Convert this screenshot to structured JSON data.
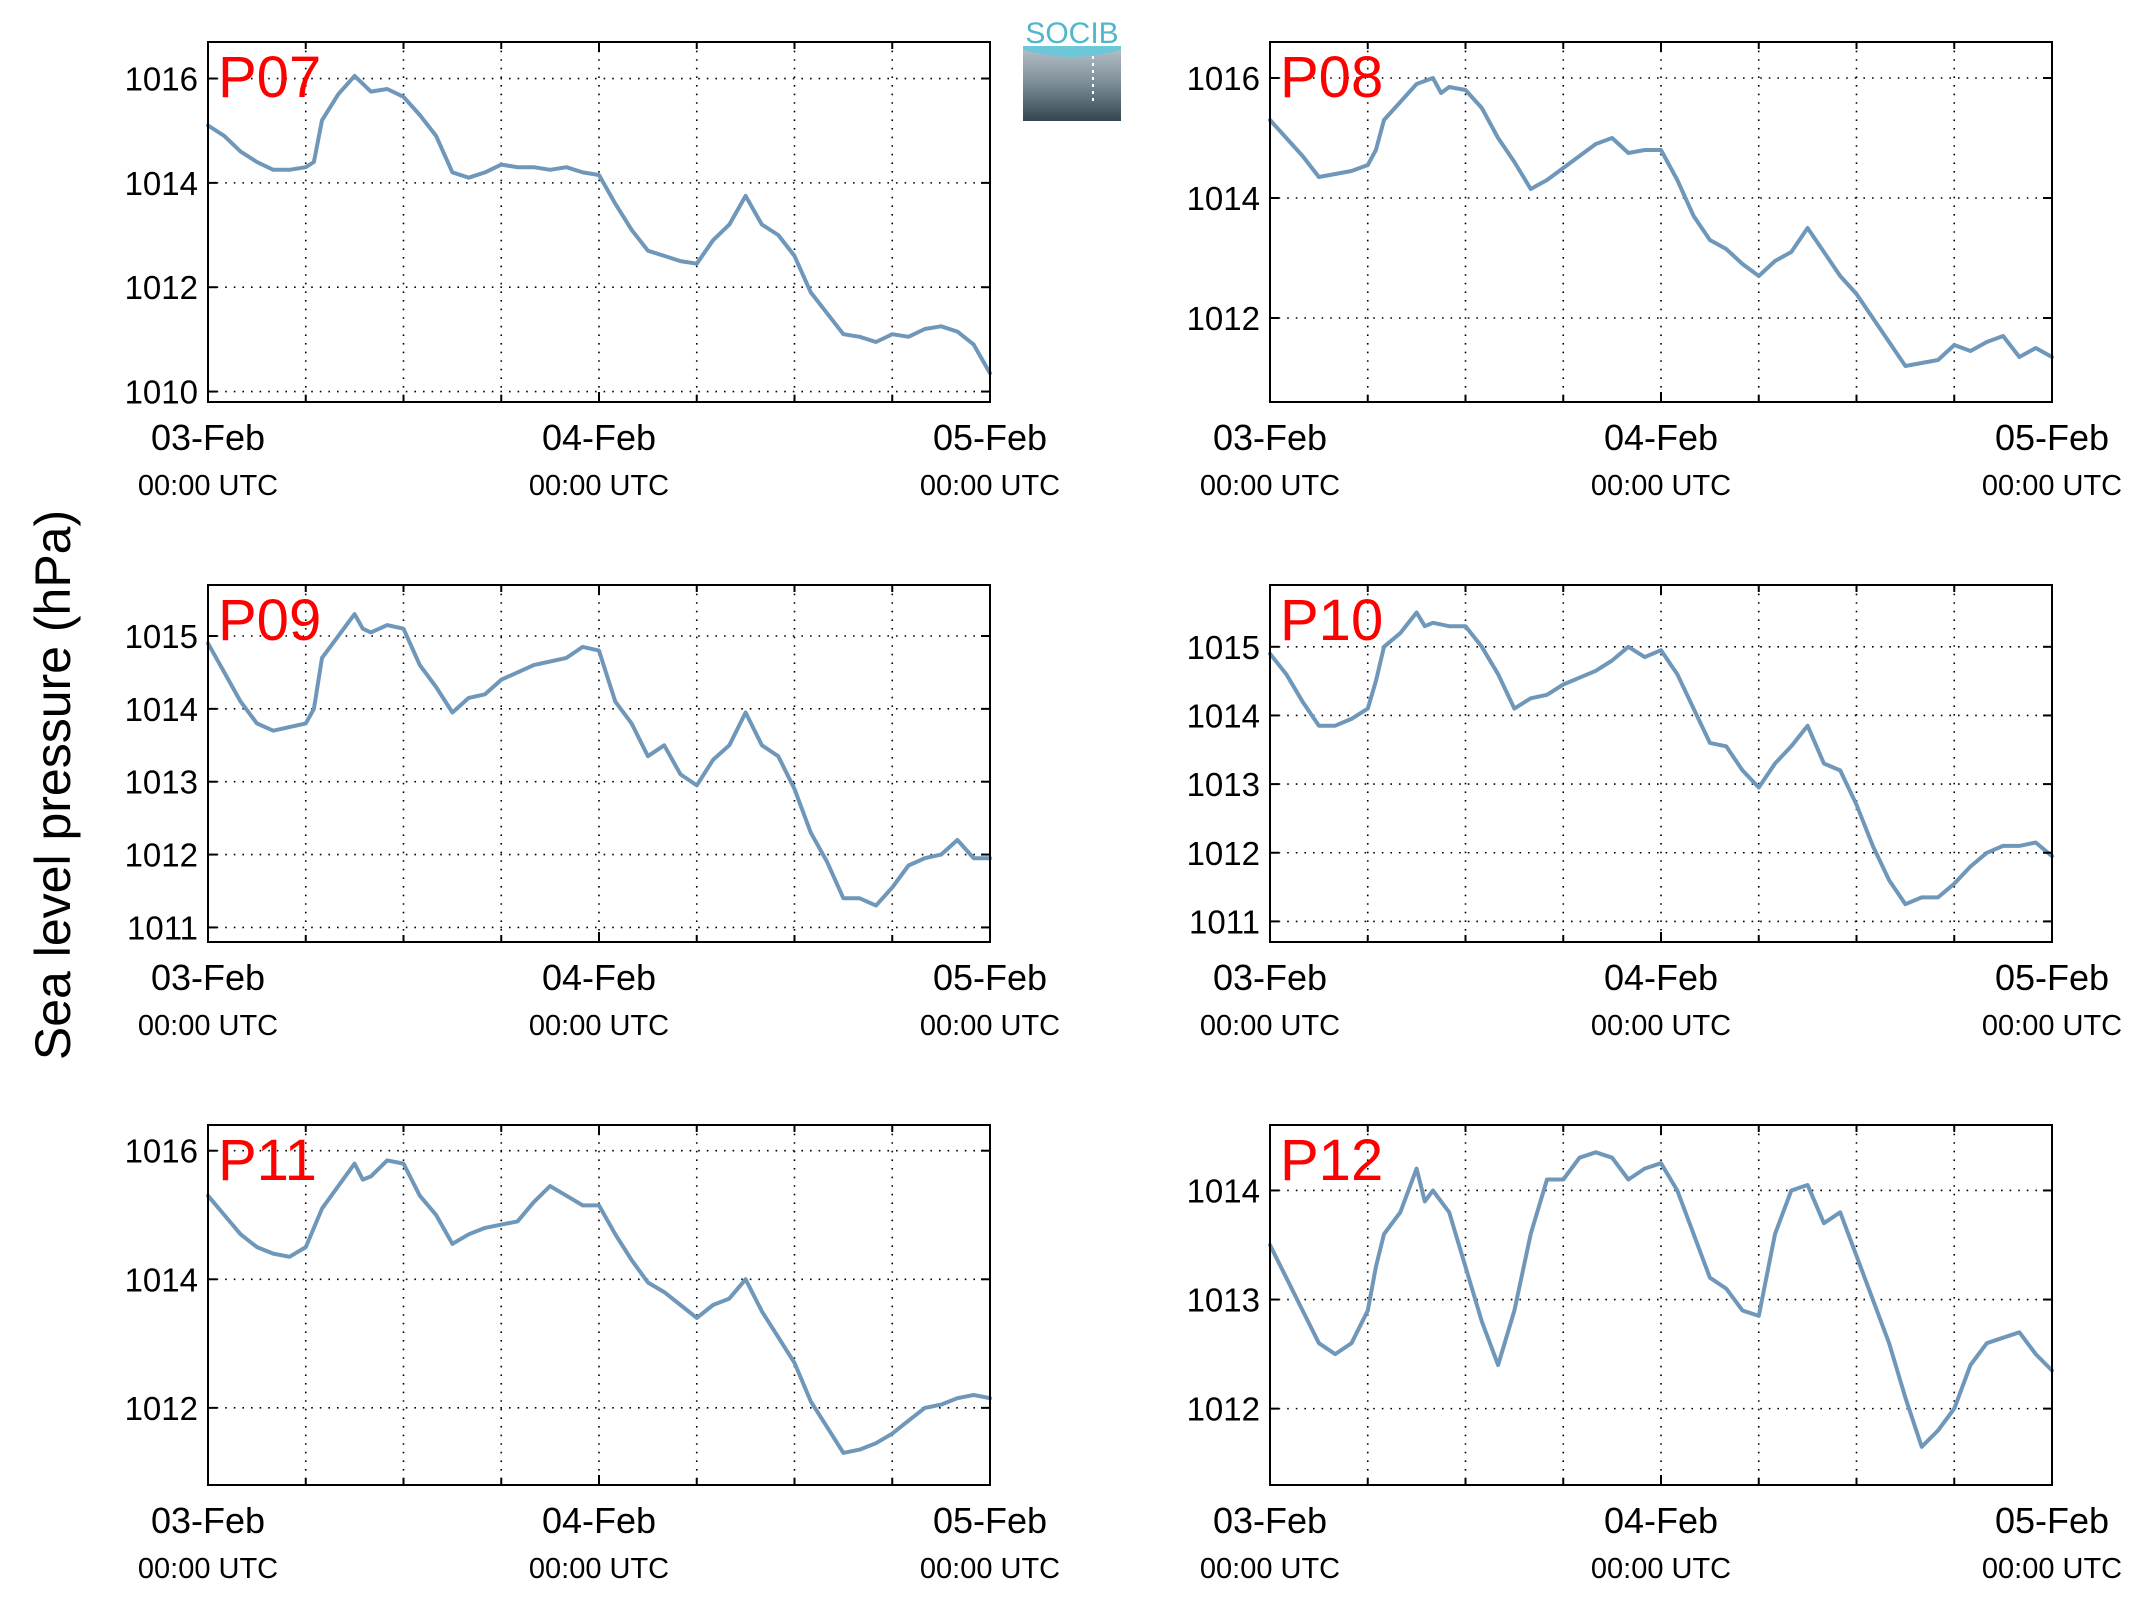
{
  "figure": {
    "ylabel": "Sea level pressure (hPa)",
    "logo_text": "SOCIB",
    "line_color": "#6f97b9",
    "label_color": "#ff0000"
  },
  "chart_data": [
    {
      "type": "line",
      "title": "P07",
      "xlim": [
        0,
        48
      ],
      "ylim": [
        1009.8,
        1016.7
      ],
      "xticks": [
        0,
        24,
        48
      ],
      "xtick_labels": [
        [
          "03-Feb",
          "00:00 UTC"
        ],
        [
          "04-Feb",
          "00:00 UTC"
        ],
        [
          "05-Feb",
          "00:00 UTC"
        ]
      ],
      "yticks": [
        1010,
        1012,
        1014,
        1016
      ],
      "grid": true,
      "series": [
        {
          "x": [
            0,
            1,
            2,
            3,
            4,
            5,
            6,
            6.5,
            7,
            8,
            9,
            10,
            11,
            12,
            13,
            14,
            15,
            16,
            17,
            18,
            19,
            20,
            21,
            22,
            23,
            24,
            25,
            26,
            27,
            28,
            29,
            30,
            31,
            32,
            33,
            34,
            35,
            36,
            37,
            38,
            39,
            40,
            41,
            42,
            43,
            44,
            45,
            46,
            47,
            48
          ],
          "values": [
            1015.1,
            1014.9,
            1014.6,
            1014.4,
            1014.25,
            1014.25,
            1014.3,
            1014.4,
            1015.2,
            1015.7,
            1016.05,
            1015.75,
            1015.8,
            1015.65,
            1015.3,
            1014.9,
            1014.2,
            1014.1,
            1014.2,
            1014.35,
            1014.3,
            1014.3,
            1014.25,
            1014.3,
            1014.2,
            1014.15,
            1013.6,
            1013.1,
            1012.7,
            1012.6,
            1012.5,
            1012.45,
            1012.9,
            1013.2,
            1013.75,
            1013.2,
            1013.0,
            1012.6,
            1011.9,
            1011.5,
            1011.1,
            1011.05,
            1010.95,
            1011.1,
            1011.05,
            1011.2,
            1011.25,
            1011.15,
            1010.9,
            1010.35
          ]
        }
      ]
    },
    {
      "type": "line",
      "title": "P08",
      "xlim": [
        0,
        48
      ],
      "ylim": [
        1010.6,
        1016.6
      ],
      "xticks": [
        0,
        24,
        48
      ],
      "xtick_labels": [
        [
          "03-Feb",
          "00:00 UTC"
        ],
        [
          "04-Feb",
          "00:00 UTC"
        ],
        [
          "05-Feb",
          "00:00 UTC"
        ]
      ],
      "yticks": [
        1012,
        1014,
        1016
      ],
      "grid": true,
      "series": [
        {
          "x": [
            0,
            1,
            2,
            3,
            4,
            5,
            6,
            6.5,
            7,
            8,
            9,
            10,
            10.5,
            11,
            12,
            13,
            14,
            15,
            16,
            17,
            18,
            19,
            20,
            21,
            22,
            23,
            24,
            25,
            26,
            27,
            28,
            29,
            30,
            31,
            32,
            33,
            34,
            35,
            36,
            37,
            38,
            39,
            40,
            41,
            42,
            43,
            44,
            45,
            46,
            47,
            48
          ],
          "values": [
            1015.3,
            1015.0,
            1014.7,
            1014.35,
            1014.4,
            1014.45,
            1014.55,
            1014.8,
            1015.3,
            1015.6,
            1015.9,
            1016.0,
            1015.75,
            1015.85,
            1015.8,
            1015.5,
            1015.0,
            1014.6,
            1014.15,
            1014.3,
            1014.5,
            1014.7,
            1014.9,
            1015.0,
            1014.75,
            1014.8,
            1014.8,
            1014.3,
            1013.7,
            1013.3,
            1013.15,
            1012.9,
            1012.7,
            1012.95,
            1013.1,
            1013.5,
            1013.1,
            1012.7,
            1012.4,
            1012.0,
            1011.6,
            1011.2,
            1011.25,
            1011.3,
            1011.55,
            1011.45,
            1011.6,
            1011.7,
            1011.35,
            1011.5,
            1011.35
          ]
        }
      ]
    },
    {
      "type": "line",
      "title": "P09",
      "xlim": [
        0,
        48
      ],
      "ylim": [
        1010.8,
        1015.7
      ],
      "xticks": [
        0,
        24,
        48
      ],
      "xtick_labels": [
        [
          "03-Feb",
          "00:00 UTC"
        ],
        [
          "04-Feb",
          "00:00 UTC"
        ],
        [
          "05-Feb",
          "00:00 UTC"
        ]
      ],
      "yticks": [
        1011,
        1012,
        1013,
        1014,
        1015
      ],
      "grid": true,
      "series": [
        {
          "x": [
            0,
            1,
            2,
            3,
            4,
            5,
            6,
            6.5,
            7,
            8,
            9,
            9.5,
            10,
            11,
            12,
            13,
            14,
            15,
            16,
            17,
            18,
            19,
            20,
            21,
            22,
            23,
            24,
            25,
            26,
            27,
            28,
            29,
            30,
            31,
            32,
            33,
            34,
            35,
            36,
            37,
            38,
            39,
            40,
            41,
            42,
            43,
            44,
            45,
            46,
            47,
            48
          ],
          "values": [
            1014.9,
            1014.5,
            1014.1,
            1013.8,
            1013.7,
            1013.75,
            1013.8,
            1014.0,
            1014.7,
            1015.0,
            1015.3,
            1015.1,
            1015.05,
            1015.15,
            1015.1,
            1014.6,
            1014.3,
            1013.95,
            1014.15,
            1014.2,
            1014.4,
            1014.5,
            1014.6,
            1014.65,
            1014.7,
            1014.85,
            1014.8,
            1014.1,
            1013.8,
            1013.35,
            1013.5,
            1013.1,
            1012.95,
            1013.3,
            1013.5,
            1013.95,
            1013.5,
            1013.35,
            1012.9,
            1012.3,
            1011.9,
            1011.4,
            1011.4,
            1011.3,
            1011.55,
            1011.85,
            1011.95,
            1012.0,
            1012.2,
            1011.95,
            1011.95
          ]
        }
      ]
    },
    {
      "type": "line",
      "title": "P10",
      "xlim": [
        0,
        48
      ],
      "ylim": [
        1010.7,
        1015.9
      ],
      "xticks": [
        0,
        24,
        48
      ],
      "xtick_labels": [
        [
          "03-Feb",
          "00:00 UTC"
        ],
        [
          "04-Feb",
          "00:00 UTC"
        ],
        [
          "05-Feb",
          "00:00 UTC"
        ]
      ],
      "yticks": [
        1011,
        1012,
        1013,
        1014,
        1015
      ],
      "grid": true,
      "series": [
        {
          "x": [
            0,
            1,
            2,
            3,
            4,
            5,
            6,
            6.5,
            7,
            8,
            9,
            9.5,
            10,
            11,
            12,
            13,
            14,
            15,
            16,
            17,
            18,
            19,
            20,
            21,
            22,
            23,
            24,
            25,
            26,
            27,
            28,
            29,
            30,
            31,
            32,
            33,
            34,
            35,
            36,
            37,
            38,
            39,
            40,
            41,
            42,
            43,
            44,
            45,
            46,
            47,
            48
          ],
          "values": [
            1014.9,
            1014.6,
            1014.2,
            1013.85,
            1013.85,
            1013.95,
            1014.1,
            1014.5,
            1015.0,
            1015.2,
            1015.5,
            1015.3,
            1015.35,
            1015.3,
            1015.3,
            1015.0,
            1014.6,
            1014.1,
            1014.25,
            1014.3,
            1014.45,
            1014.55,
            1014.65,
            1014.8,
            1015.0,
            1014.85,
            1014.95,
            1014.6,
            1014.1,
            1013.6,
            1013.55,
            1013.2,
            1012.95,
            1013.3,
            1013.55,
            1013.85,
            1013.3,
            1013.2,
            1012.7,
            1012.1,
            1011.6,
            1011.25,
            1011.35,
            1011.35,
            1011.55,
            1011.8,
            1012.0,
            1012.1,
            1012.1,
            1012.15,
            1011.95
          ]
        }
      ]
    },
    {
      "type": "line",
      "title": "P11",
      "xlim": [
        0,
        48
      ],
      "ylim": [
        1010.8,
        1016.4
      ],
      "xticks": [
        0,
        24,
        48
      ],
      "xtick_labels": [
        [
          "03-Feb",
          "00:00 UTC"
        ],
        [
          "04-Feb",
          "00:00 UTC"
        ],
        [
          "05-Feb",
          "00:00 UTC"
        ]
      ],
      "yticks": [
        1012,
        1014,
        1016
      ],
      "grid": true,
      "series": [
        {
          "x": [
            0,
            1,
            2,
            3,
            4,
            5,
            6,
            6.5,
            7,
            8,
            9,
            9.5,
            10,
            11,
            12,
            13,
            14,
            15,
            16,
            17,
            18,
            19,
            20,
            21,
            22,
            23,
            24,
            25,
            26,
            27,
            28,
            29,
            30,
            31,
            32,
            33,
            34,
            35,
            36,
            37,
            38,
            39,
            40,
            41,
            42,
            43,
            44,
            45,
            46,
            47,
            48
          ],
          "values": [
            1015.3,
            1015.0,
            1014.7,
            1014.5,
            1014.4,
            1014.35,
            1014.5,
            1014.8,
            1015.1,
            1015.45,
            1015.8,
            1015.55,
            1015.6,
            1015.85,
            1015.8,
            1015.3,
            1015.0,
            1014.55,
            1014.7,
            1014.8,
            1014.85,
            1014.9,
            1015.2,
            1015.45,
            1015.3,
            1015.15,
            1015.15,
            1014.7,
            1014.3,
            1013.95,
            1013.8,
            1013.6,
            1013.4,
            1013.6,
            1013.7,
            1014.0,
            1013.5,
            1013.1,
            1012.7,
            1012.1,
            1011.7,
            1011.3,
            1011.35,
            1011.45,
            1011.6,
            1011.8,
            1012.0,
            1012.05,
            1012.15,
            1012.2,
            1012.15
          ]
        }
      ]
    },
    {
      "type": "line",
      "title": "P12",
      "xlim": [
        0,
        48
      ],
      "ylim": [
        1011.3,
        1014.6
      ],
      "xticks": [
        0,
        24,
        48
      ],
      "xtick_labels": [
        [
          "03-Feb",
          "00:00 UTC"
        ],
        [
          "04-Feb",
          "00:00 UTC"
        ],
        [
          "05-Feb",
          "00:00 UTC"
        ]
      ],
      "yticks": [
        1012,
        1013,
        1014
      ],
      "grid": true,
      "series": [
        {
          "x": [
            0,
            1,
            2,
            3,
            4,
            5,
            6,
            6.5,
            7,
            8,
            9,
            9.5,
            10,
            11,
            12,
            13,
            14,
            15,
            16,
            17,
            18,
            19,
            20,
            21,
            22,
            23,
            24,
            25,
            26,
            27,
            28,
            29,
            30,
            31,
            32,
            33,
            34,
            35,
            36,
            37,
            38,
            39,
            40,
            41,
            42,
            43,
            44,
            45,
            46,
            47,
            48
          ],
          "values": [
            1013.5,
            1013.2,
            1012.9,
            1012.6,
            1012.5,
            1012.6,
            1012.9,
            1013.3,
            1013.6,
            1013.8,
            1014.2,
            1013.9,
            1014.0,
            1013.8,
            1013.3,
            1012.8,
            1012.4,
            1012.9,
            1013.6,
            1014.1,
            1014.1,
            1014.3,
            1014.35,
            1014.3,
            1014.1,
            1014.2,
            1014.25,
            1014.0,
            1013.6,
            1013.2,
            1013.1,
            1012.9,
            1012.85,
            1013.6,
            1014.0,
            1014.05,
            1013.7,
            1013.8,
            1013.4,
            1013.0,
            1012.6,
            1012.1,
            1011.65,
            1011.8,
            1012.0,
            1012.4,
            1012.6,
            1012.65,
            1012.7,
            1012.5,
            1012.35
          ]
        }
      ]
    }
  ]
}
